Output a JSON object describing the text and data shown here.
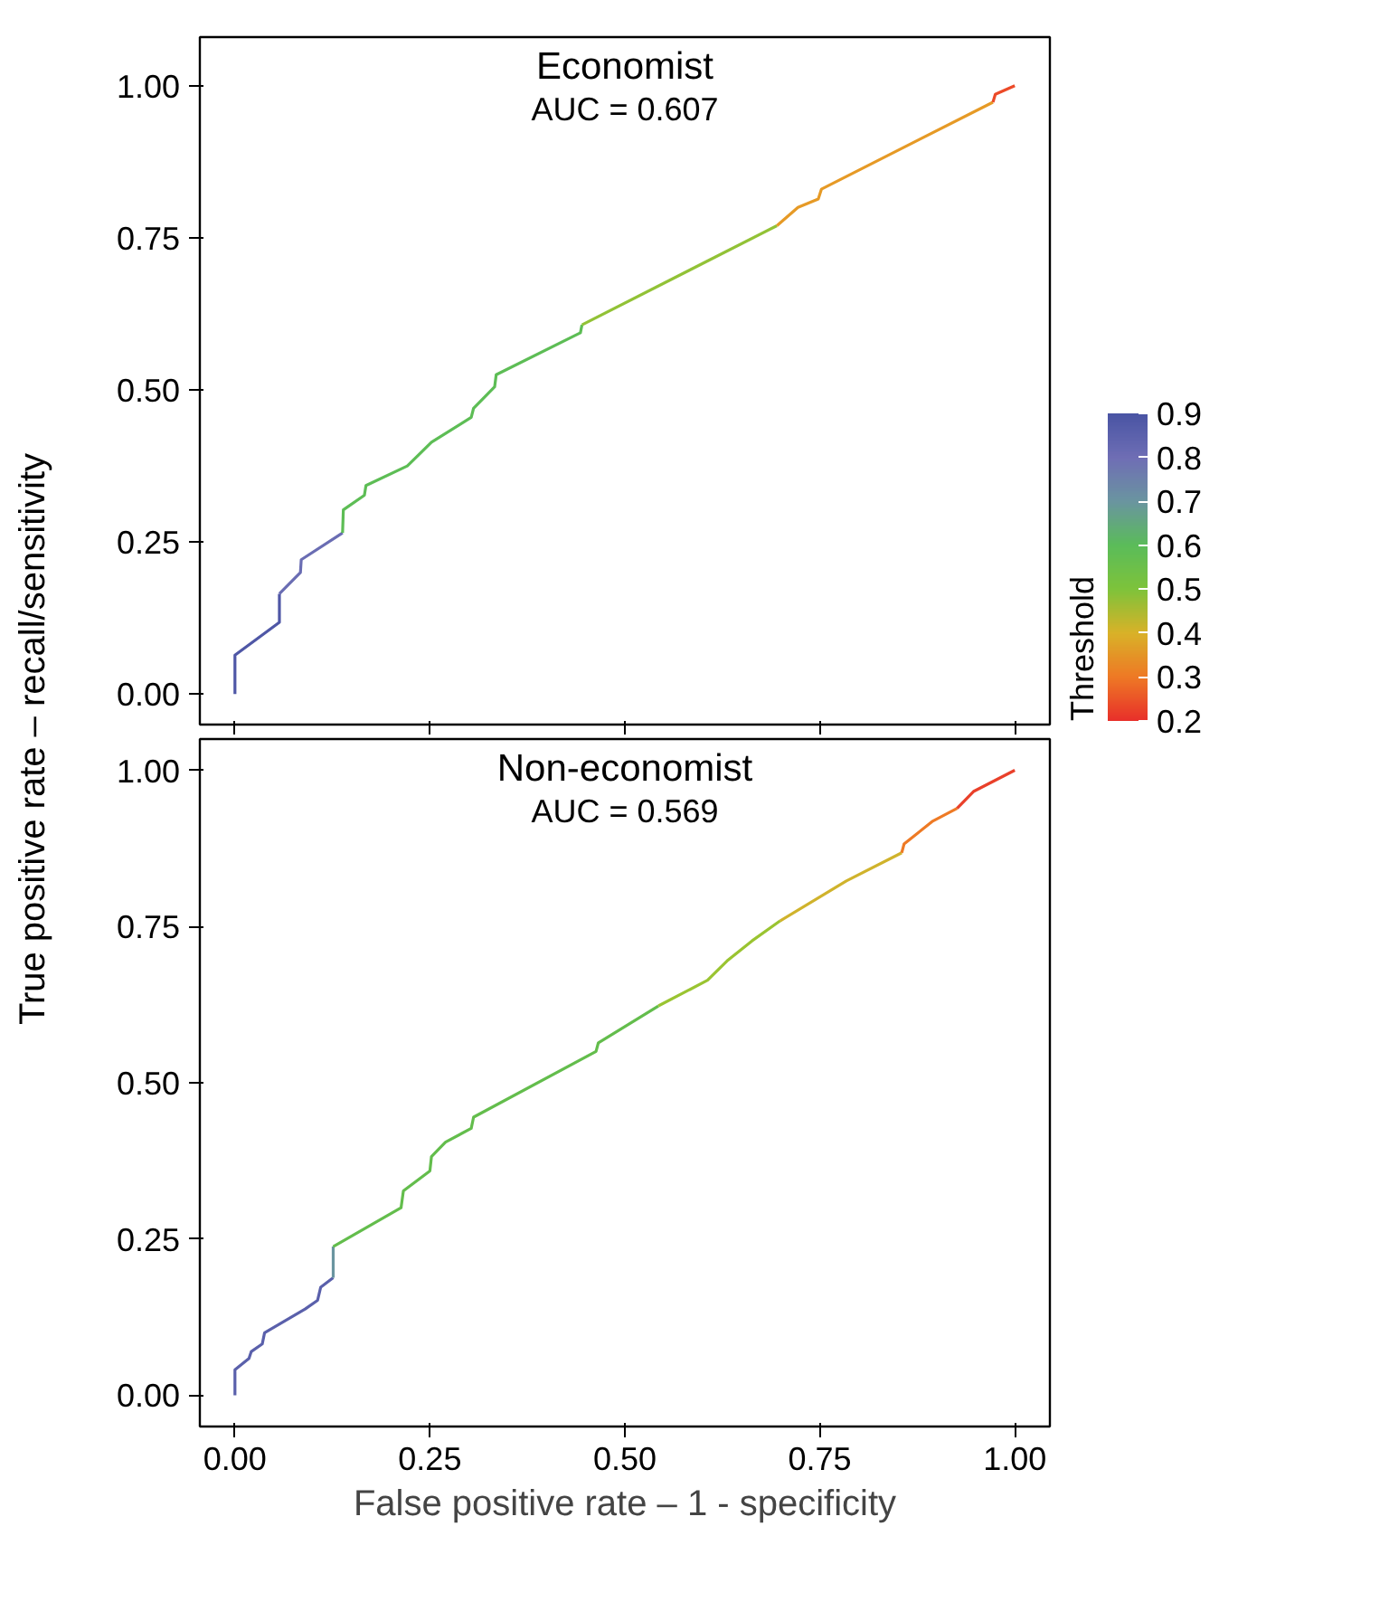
{
  "chart_data": [
    {
      "type": "line",
      "title": "Economist",
      "subtitle": "AUC = 0.607",
      "ylabel": "True positive rate – recall/sensitivity",
      "tick_labels": "y",
      "grid": false,
      "marker": "none",
      "clabel": "Threshold",
      "clim": [
        0.2,
        0.9
      ],
      "cticks": [
        0.2,
        0.3,
        0.4,
        0.5,
        0.6,
        0.7,
        0.8,
        0.9
      ],
      "xlim": [
        -0.045,
        1.045
      ],
      "ylim": [
        -0.05,
        1.08
      ],
      "xticks": [
        {
          "value": 0,
          "label": null
        },
        {
          "value": 0.25,
          "label": null
        },
        {
          "value": 0.5,
          "label": null
        },
        {
          "value": 0.75,
          "label": null
        },
        {
          "value": 1,
          "label": null
        }
      ],
      "yticks": [
        {
          "value": 0,
          "label": "0.00"
        },
        {
          "value": 0.25,
          "label": "0.25"
        },
        {
          "value": 0.5,
          "label": "0.50"
        },
        {
          "value": 0.75,
          "label": "0.75"
        },
        {
          "value": 1,
          "label": "1.00"
        }
      ],
      "series": [
        {
          "color": "#4f57a6",
          "x": [
            0,
            0,
            0.057,
            0.057
          ],
          "values": [
            0,
            0.064,
            0.118,
            0.165
          ]
        },
        {
          "color": "#6a6db3",
          "x": [
            0.057,
            0.084,
            0.085,
            0.138
          ],
          "values": [
            0.165,
            0.2,
            0.221,
            0.265
          ]
        },
        {
          "color": "#5dbd55",
          "x": [
            0.138,
            0.139,
            0.166,
            0.168,
            0.221,
            0.252,
            0.303,
            0.306,
            0.333,
            0.335,
            0.443,
            0.445
          ],
          "values": [
            0.265,
            0.303,
            0.327,
            0.343,
            0.375,
            0.414,
            0.455,
            0.47,
            0.505,
            0.525,
            0.594,
            0.607
          ]
        },
        {
          "color": "#92c236",
          "x": [
            0.445,
            0.695
          ],
          "values": [
            0.607,
            0.77
          ]
        },
        {
          "color": "#e69a26",
          "x": [
            0.695,
            0.722,
            0.748,
            0.752,
            0.972
          ],
          "values": [
            0.77,
            0.8,
            0.814,
            0.83,
            0.973
          ]
        },
        {
          "color": "#ec4a28",
          "x": [
            0.972,
            0.975,
            1
          ],
          "values": [
            0.973,
            0.986,
            1
          ]
        }
      ]
    },
    {
      "type": "line",
      "title": "Non-economist",
      "subtitle": "AUC = 0.569",
      "xlabel": "False positive rate – 1 - specificity",
      "grid": false,
      "marker": "none",
      "xlim": [
        -0.045,
        1.045
      ],
      "ylim": [
        -0.05,
        1.05
      ],
      "xticks": [
        {
          "value": 0,
          "label": "0.00"
        },
        {
          "value": 0.25,
          "label": "0.25"
        },
        {
          "value": 0.5,
          "label": "0.50"
        },
        {
          "value": 0.75,
          "label": "0.75"
        },
        {
          "value": 1,
          "label": "1.00"
        }
      ],
      "yticks": [
        {
          "value": 0,
          "label": "0.00"
        },
        {
          "value": 0.25,
          "label": "0.25"
        },
        {
          "value": 0.5,
          "label": "0.50"
        },
        {
          "value": 0.75,
          "label": "0.75"
        },
        {
          "value": 1,
          "label": "1.00"
        }
      ],
      "series": [
        {
          "color": "#5a60ab",
          "x": [
            0,
            0,
            0.018,
            0.021,
            0.035,
            0.038,
            0.09,
            0.106,
            0.11,
            0.126
          ],
          "values": [
            0,
            0.041,
            0.059,
            0.07,
            0.082,
            0.1,
            0.138,
            0.152,
            0.173,
            0.188
          ]
        },
        {
          "color": "#6a95a0",
          "x": [
            0.126,
            0.126
          ],
          "values": [
            0.188,
            0.238
          ]
        },
        {
          "color": "#63bd4c",
          "x": [
            0.126,
            0.213,
            0.216,
            0.25,
            0.252,
            0.27,
            0.303,
            0.306,
            0.463,
            0.466,
            0.543
          ],
          "values": [
            0.238,
            0.3,
            0.327,
            0.359,
            0.382,
            0.405,
            0.427,
            0.445,
            0.55,
            0.564,
            0.623
          ]
        },
        {
          "color": "#9ac431",
          "x": [
            0.543,
            0.606,
            0.631,
            0.663,
            0.699
          ],
          "values": [
            0.623,
            0.664,
            0.695,
            0.727,
            0.759
          ]
        },
        {
          "color": "#d0b32c",
          "x": [
            0.699,
            0.784,
            0.855
          ],
          "values": [
            0.759,
            0.823,
            0.868
          ]
        },
        {
          "color": "#ee7a25",
          "x": [
            0.855,
            0.858,
            0.894,
            0.926
          ],
          "values": [
            0.868,
            0.882,
            0.918,
            0.939
          ]
        },
        {
          "color": "#e9402a",
          "x": [
            0.926,
            0.947,
            1
          ],
          "values": [
            0.939,
            0.966,
            1
          ]
        }
      ]
    }
  ]
}
